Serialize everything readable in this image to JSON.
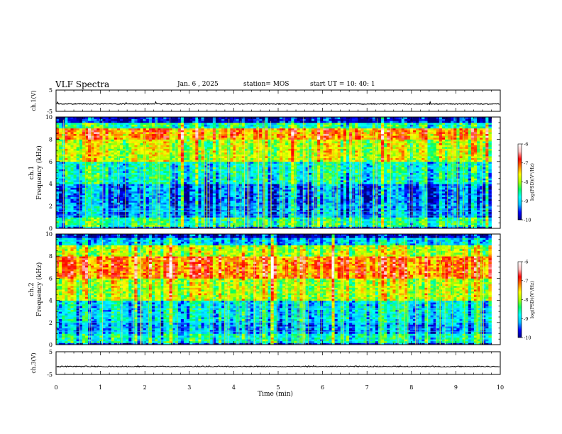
{
  "header": {
    "title": "VLF Spectra",
    "date": "Jan. 6 , 2025",
    "station": "station= MOS",
    "start": "start UT = 10: 40: 1"
  },
  "chart_data": [
    {
      "type": "line",
      "name": "ch1-voltage",
      "ylabel": "ch.1(V)",
      "ylim": [
        -5,
        5
      ],
      "yticks": [
        "5",
        "-5"
      ],
      "xlim": [
        0,
        10
      ],
      "approx_level": -1.5
    },
    {
      "type": "heatmap",
      "name": "ch1-spectrogram",
      "ylabel_line1": "ch.1",
      "ylabel_line2": "Frequency (kHz)",
      "ylim": [
        0,
        10
      ],
      "yticks": [
        "0",
        "2",
        "4",
        "6",
        "8",
        "10"
      ],
      "xlim": [
        0,
        10
      ],
      "data_extent_min": 9.8,
      "colorbar": {
        "label": "log(PSD)(V²/Hz)",
        "range": [
          -10,
          -6
        ],
        "ticks": [
          "-6",
          "-7",
          "-8",
          "-9",
          "-10"
        ],
        "colors": [
          "#000080",
          "#0000ff",
          "#00bfff",
          "#00ffff",
          "#00ff66",
          "#aaff00",
          "#ffff00",
          "#ff8000",
          "#ff0000",
          "#ffc0c0",
          "#ffffff"
        ]
      },
      "bands": [
        {
          "f": [
            0.0,
            0.2
          ],
          "level": -9.6
        },
        {
          "f": [
            0.2,
            1.0
          ],
          "level": -8.6
        },
        {
          "f": [
            1.0,
            2.2
          ],
          "level": -9.3
        },
        {
          "f": [
            2.2,
            4.0
          ],
          "level": -9.4
        },
        {
          "f": [
            4.0,
            6.0
          ],
          "level": -8.8
        },
        {
          "f": [
            6.0,
            8.0
          ],
          "level": -7.9
        },
        {
          "f": [
            8.0,
            9.0
          ],
          "level": -7.3
        },
        {
          "f": [
            9.0,
            9.5
          ],
          "level": -8.6
        },
        {
          "f": [
            9.5,
            10.0
          ],
          "level": -9.8
        }
      ],
      "lines_khz": [
        1.2,
        1.5,
        1.8,
        2.1
      ]
    },
    {
      "type": "heatmap",
      "name": "ch2-spectrogram",
      "ylabel_line1": "ch.2",
      "ylabel_line2": "Frequency (kHz)",
      "ylim": [
        0,
        10
      ],
      "yticks": [
        "0",
        "2",
        "4",
        "6",
        "8",
        "10"
      ],
      "xlim": [
        0,
        10
      ],
      "data_extent_min": 9.8,
      "colorbar": {
        "label": "log(PSD)(V²/Hz)",
        "range": [
          -10,
          -6
        ],
        "ticks": [
          "-6",
          "-7",
          "-8",
          "-9",
          "-10"
        ],
        "colors": [
          "#000080",
          "#0000ff",
          "#00bfff",
          "#00ffff",
          "#00ff66",
          "#aaff00",
          "#ffff00",
          "#ff8000",
          "#ff0000",
          "#ffc0c0",
          "#ffffff"
        ]
      },
      "bands": [
        {
          "f": [
            0.0,
            0.2
          ],
          "level": -9.6
        },
        {
          "f": [
            0.2,
            1.0
          ],
          "level": -8.7
        },
        {
          "f": [
            1.0,
            2.0
          ],
          "level": -9.2
        },
        {
          "f": [
            2.0,
            4.0
          ],
          "level": -8.9
        },
        {
          "f": [
            4.0,
            6.0
          ],
          "level": -7.9
        },
        {
          "f": [
            6.0,
            8.0
          ],
          "level": -7.1
        },
        {
          "f": [
            8.0,
            9.0
          ],
          "level": -7.9
        },
        {
          "f": [
            9.0,
            9.7
          ],
          "level": -9.0
        },
        {
          "f": [
            9.7,
            10.0
          ],
          "level": -9.8
        }
      ],
      "lines_khz": [
        1.2,
        1.6,
        2.0,
        2.8,
        3.3
      ]
    },
    {
      "type": "line",
      "name": "ch3-voltage",
      "ylabel": "ch.3(V)",
      "ylim": [
        -5,
        5
      ],
      "yticks": [
        "5",
        "-5"
      ],
      "xlim": [
        0,
        10
      ],
      "approx_level": -1.5
    }
  ],
  "xaxis": {
    "label": "Time (min)",
    "ticks": [
      "0",
      "1",
      "2",
      "3",
      "4",
      "5",
      "6",
      "7",
      "8",
      "9",
      "10"
    ]
  }
}
